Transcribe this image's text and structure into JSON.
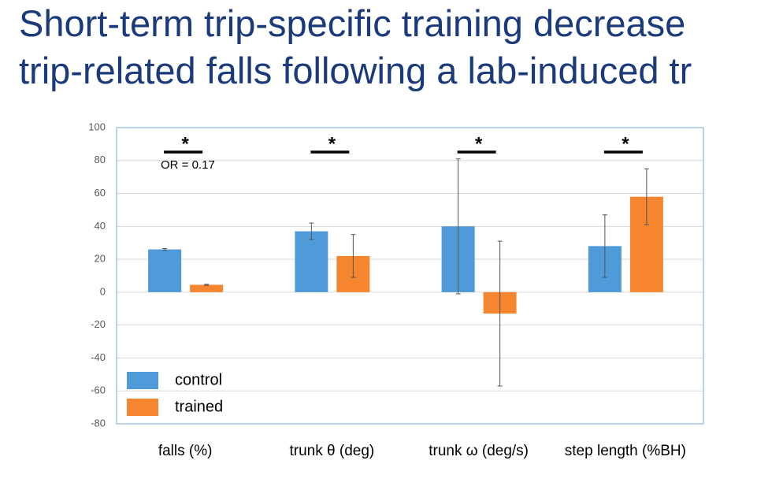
{
  "slide_title": [
    "Short-term trip-specific training decrease",
    "trip-related falls following a lab-induced tr"
  ],
  "chart_data": {
    "type": "bar",
    "categories": [
      "falls (%)",
      "trunk θ (deg)",
      "trunk ω (deg/s)",
      "step length (%BH)"
    ],
    "series": [
      {
        "name": "control",
        "color": "#4f9ad8",
        "values": [
          26,
          37,
          40,
          28
        ],
        "errors": [
          0.5,
          5,
          41,
          19
        ]
      },
      {
        "name": "trained",
        "color": "#f5862f",
        "values": [
          4.5,
          22,
          -13,
          58
        ],
        "errors": [
          0.3,
          13,
          44,
          17
        ]
      }
    ],
    "annotations": [
      "*",
      "*",
      "*",
      "*",
      "OR = 0.17"
    ],
    "ylim": [
      -80,
      100
    ],
    "yticks": [
      -80,
      -60,
      -40,
      -20,
      0,
      20,
      40,
      60,
      80,
      100
    ],
    "grid": true,
    "legend": "lower left"
  }
}
